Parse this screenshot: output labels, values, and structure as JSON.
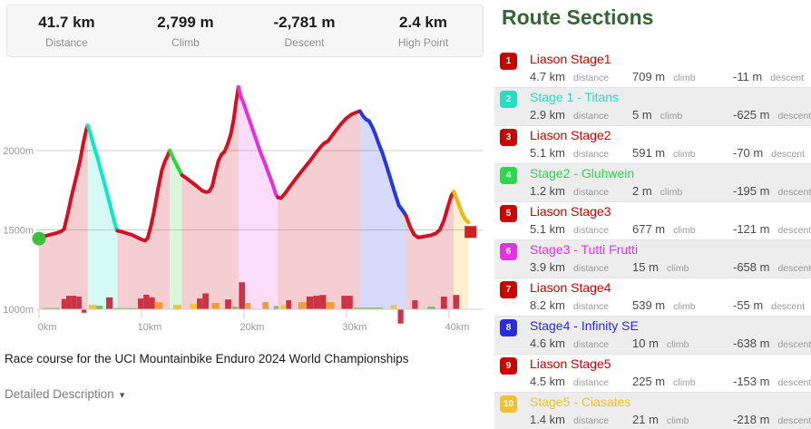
{
  "stats_bar": {
    "items": [
      {
        "value": "41.7 km",
        "label": "Distance"
      },
      {
        "value": "2,799 m",
        "label": "Climb"
      },
      {
        "value": "-2,781 m",
        "label": "Descent"
      },
      {
        "value": "2.4 km",
        "label": "High Point"
      }
    ]
  },
  "caption": "Race course for the UCI Mountainbike Enduro 2024 World Championships",
  "detail_toggle": {
    "label": "Detailed Description",
    "icon": "▾"
  },
  "route_sections": {
    "title": "Route Sections",
    "labels": {
      "distance": "distance",
      "climb": "climb",
      "descent": "descent"
    },
    "items": [
      {
        "num": "1",
        "name": "Liason Stage1",
        "color": "#cc0000",
        "distance": "4.7 km",
        "climb": "709 m",
        "descent": "-11 m"
      },
      {
        "num": "2",
        "name": "Stage 1 - Titans",
        "color": "#1fe0c4",
        "distance": "2.9 km",
        "climb": "5 m",
        "descent": "-625 m"
      },
      {
        "num": "3",
        "name": "Liason Stage2",
        "color": "#cc0000",
        "distance": "5.1 km",
        "climb": "591 m",
        "descent": "-70 m"
      },
      {
        "num": "4",
        "name": "Stage2 - Gluhwein",
        "color": "#2cd84e",
        "distance": "1.2 km",
        "climb": "2 m",
        "descent": "-195 m"
      },
      {
        "num": "5",
        "name": "Liason Stage3",
        "color": "#cc0000",
        "distance": "5.1 km",
        "climb": "677 m",
        "descent": "-121 m"
      },
      {
        "num": "6",
        "name": "Stage3 - Tutti Frutti",
        "color": "#e431e4",
        "distance": "3.9 km",
        "climb": "15 m",
        "descent": "-658 m"
      },
      {
        "num": "7",
        "name": "Liason Stage4",
        "color": "#cc0000",
        "distance": "8.2 km",
        "climb": "539 m",
        "descent": "-55 m"
      },
      {
        "num": "8",
        "name": "Stage4 - Infinity SE",
        "color": "#2a2ae4",
        "distance": "4.6 km",
        "climb": "10 m",
        "descent": "-638 m"
      },
      {
        "num": "9",
        "name": "Liason Stage5",
        "color": "#cc0000",
        "distance": "4.5 km",
        "climb": "225 m",
        "descent": "-153 m"
      },
      {
        "num": "10",
        "name": "Stage5 - Ciasates",
        "color": "#f2c12d",
        "distance": "1.4 km",
        "climb": "21 m",
        "descent": "-218 m"
      }
    ]
  },
  "chart_data": {
    "type": "area",
    "title": "Elevation profile of race course",
    "x_unit": "km",
    "y_unit": "m",
    "x_range": [
      0,
      43.5
    ],
    "y_range": [
      1000,
      2450
    ],
    "grid": true,
    "x_ticks": [
      {
        "v": 0,
        "label": "0km"
      },
      {
        "v": 10,
        "label": "10km"
      },
      {
        "v": 20,
        "label": "20km"
      },
      {
        "v": 30,
        "label": "30km"
      },
      {
        "v": 40,
        "label": "40km"
      }
    ],
    "y_ticks": [
      {
        "v": 1000,
        "label": "1000m"
      },
      {
        "v": 1500,
        "label": "1500m"
      },
      {
        "v": 2000,
        "label": "2000m"
      }
    ],
    "start_marker": {
      "x": 0,
      "elev": 1445,
      "color": "#3fbf3f"
    },
    "end_marker": {
      "x": 42.1,
      "elev": 1487,
      "color": "#cc2222"
    },
    "segments": [
      {
        "name": "Liason Stage1",
        "line": "#d11124",
        "fill": "rgba(209,30,50,0.22)",
        "points": [
          [
            0,
            1445
          ],
          [
            0.6,
            1462
          ],
          [
            1.2,
            1472
          ],
          [
            1.8,
            1482
          ],
          [
            2.2,
            1492
          ],
          [
            2.45,
            1505
          ],
          [
            2.8,
            1600
          ],
          [
            3.2,
            1720
          ],
          [
            3.6,
            1825
          ],
          [
            4.0,
            1935
          ],
          [
            4.3,
            2040
          ],
          [
            4.6,
            2130
          ],
          [
            4.75,
            2158
          ]
        ]
      },
      {
        "name": "Stage 1 - Titans",
        "line": "#0ee6c8",
        "fill": "rgba(14,230,200,0.18)",
        "points": [
          [
            4.75,
            2158
          ],
          [
            5.0,
            2110
          ],
          [
            5.3,
            2040
          ],
          [
            5.7,
            1955
          ],
          [
            6.1,
            1860
          ],
          [
            6.5,
            1765
          ],
          [
            6.9,
            1665
          ],
          [
            7.3,
            1565
          ],
          [
            7.55,
            1505
          ],
          [
            7.65,
            1495
          ]
        ]
      },
      {
        "name": "Liason Stage2",
        "line": "#d11124",
        "fill": "rgba(209,30,50,0.22)",
        "points": [
          [
            7.65,
            1495
          ],
          [
            8.1,
            1488
          ],
          [
            8.6,
            1478
          ],
          [
            9.1,
            1468
          ],
          [
            9.6,
            1452
          ],
          [
            10.0,
            1440
          ],
          [
            10.35,
            1432
          ],
          [
            10.6,
            1448
          ],
          [
            10.9,
            1520
          ],
          [
            11.2,
            1610
          ],
          [
            11.6,
            1755
          ],
          [
            12.0,
            1880
          ],
          [
            12.3,
            1935
          ],
          [
            12.55,
            1968
          ],
          [
            12.75,
            2000
          ]
        ]
      },
      {
        "name": "Stage2 - Gluhwein",
        "line": "#2cd440",
        "fill": "rgba(44,212,64,0.18)",
        "points": [
          [
            12.75,
            2000
          ],
          [
            13.0,
            1965
          ],
          [
            13.3,
            1925
          ],
          [
            13.6,
            1888
          ],
          [
            13.95,
            1845
          ]
        ]
      },
      {
        "name": "Liason Stage3",
        "line": "#d11124",
        "fill": "rgba(209,30,50,0.22)",
        "points": [
          [
            13.95,
            1845
          ],
          [
            14.4,
            1825
          ],
          [
            14.9,
            1800
          ],
          [
            15.4,
            1775
          ],
          [
            15.9,
            1748
          ],
          [
            16.3,
            1738
          ],
          [
            16.6,
            1742
          ],
          [
            16.9,
            1775
          ],
          [
            17.2,
            1860
          ],
          [
            17.5,
            1935
          ],
          [
            17.8,
            1975
          ],
          [
            18.1,
            1993
          ],
          [
            18.4,
            2040
          ],
          [
            18.7,
            2100
          ],
          [
            19.0,
            2200
          ],
          [
            19.2,
            2295
          ],
          [
            19.45,
            2400
          ]
        ]
      },
      {
        "name": "Stage3 - Tutti Frutti",
        "line": "#e42ee4",
        "fill": "rgba(228,46,228,0.16)",
        "points": [
          [
            19.45,
            2400
          ],
          [
            19.7,
            2340
          ],
          [
            20.0,
            2290
          ],
          [
            20.4,
            2215
          ],
          [
            20.8,
            2140
          ],
          [
            21.2,
            2065
          ],
          [
            21.6,
            1990
          ],
          [
            22.0,
            1925
          ],
          [
            22.4,
            1855
          ],
          [
            22.8,
            1785
          ],
          [
            23.1,
            1725
          ],
          [
            23.3,
            1705
          ]
        ]
      },
      {
        "name": "Liason Stage4",
        "line": "#d11124",
        "fill": "rgba(209,30,50,0.22)",
        "points": [
          [
            23.3,
            1705
          ],
          [
            23.6,
            1700
          ],
          [
            24.0,
            1730
          ],
          [
            24.5,
            1775
          ],
          [
            25.0,
            1818
          ],
          [
            25.5,
            1860
          ],
          [
            26.0,
            1900
          ],
          [
            26.5,
            1940
          ],
          [
            27.0,
            1985
          ],
          [
            27.5,
            2025
          ],
          [
            27.8,
            2045
          ],
          [
            28.2,
            2060
          ],
          [
            28.6,
            2095
          ],
          [
            29.0,
            2130
          ],
          [
            29.5,
            2170
          ],
          [
            30.0,
            2205
          ],
          [
            30.5,
            2228
          ],
          [
            31.0,
            2242
          ],
          [
            31.3,
            2248
          ]
        ]
      },
      {
        "name": "Stage4 - Infinity SE",
        "line": "#2636e6",
        "fill": "rgba(60,70,230,0.20)",
        "points": [
          [
            31.3,
            2248
          ],
          [
            31.6,
            2218
          ],
          [
            31.9,
            2196
          ],
          [
            32.2,
            2186
          ],
          [
            32.5,
            2150
          ],
          [
            32.8,
            2105
          ],
          [
            33.1,
            2050
          ],
          [
            33.5,
            1985
          ],
          [
            33.9,
            1905
          ],
          [
            34.3,
            1820
          ],
          [
            34.7,
            1735
          ],
          [
            35.1,
            1655
          ],
          [
            35.5,
            1620
          ],
          [
            35.8,
            1590
          ]
        ]
      },
      {
        "name": "Liason Stage5",
        "line": "#d11124",
        "fill": "rgba(209,30,50,0.22)",
        "points": [
          [
            35.8,
            1590
          ],
          [
            36.2,
            1520
          ],
          [
            36.6,
            1470
          ],
          [
            37.0,
            1452
          ],
          [
            37.5,
            1458
          ],
          [
            38.2,
            1466
          ],
          [
            38.7,
            1478
          ],
          [
            39.1,
            1500
          ],
          [
            39.5,
            1560
          ],
          [
            39.9,
            1648
          ],
          [
            40.2,
            1712
          ],
          [
            40.45,
            1740
          ]
        ]
      },
      {
        "name": "Stage5 - Ciasates",
        "line": "#f2b411",
        "fill": "rgba(242,180,17,0.20)",
        "points": [
          [
            40.45,
            1740
          ],
          [
            40.7,
            1705
          ],
          [
            41.0,
            1650
          ],
          [
            41.3,
            1600
          ],
          [
            41.6,
            1565
          ],
          [
            41.9,
            1548
          ]
        ]
      }
    ],
    "bar_palette": {
      "r": "#cc3344",
      "o": "#f39c35",
      "y": "#f2c437",
      "g": "#7cbb5f"
    },
    "bars": [
      [
        0.4,
        1.6,
        8,
        "g"
      ],
      [
        2.2,
        0.45,
        65,
        "r"
      ],
      [
        2.65,
        0.5,
        85,
        "r"
      ],
      [
        3.15,
        0.5,
        85,
        "r"
      ],
      [
        3.65,
        0.5,
        80,
        "r"
      ],
      [
        4.15,
        0.45,
        -22,
        "r"
      ],
      [
        4.85,
        0.75,
        28,
        "y"
      ],
      [
        5.6,
        0.6,
        22,
        "g"
      ],
      [
        6.55,
        0.65,
        75,
        "r"
      ],
      [
        7.3,
        2.3,
        8,
        "g"
      ],
      [
        9.65,
        0.55,
        68,
        "r"
      ],
      [
        10.2,
        0.55,
        92,
        "r"
      ],
      [
        10.75,
        0.55,
        75,
        "r"
      ],
      [
        11.3,
        0.75,
        45,
        "o"
      ],
      [
        13.1,
        0.8,
        28,
        "y"
      ],
      [
        14.7,
        0.7,
        34,
        "y"
      ],
      [
        15.4,
        0.55,
        68,
        "r"
      ],
      [
        15.95,
        0.6,
        100,
        "r"
      ],
      [
        16.85,
        0.75,
        40,
        "o"
      ],
      [
        18.15,
        0.6,
        62,
        "r"
      ],
      [
        18.85,
        0.55,
        16,
        "g"
      ],
      [
        19.5,
        0.6,
        170,
        "r"
      ],
      [
        20.15,
        0.5,
        40,
        "o"
      ],
      [
        21.8,
        0.6,
        45,
        "o"
      ],
      [
        22.9,
        0.45,
        20,
        "g"
      ],
      [
        23.6,
        0.5,
        28,
        "y"
      ],
      [
        24.1,
        0.5,
        57,
        "r"
      ],
      [
        25.3,
        0.8,
        45,
        "o"
      ],
      [
        26.1,
        0.65,
        80,
        "r"
      ],
      [
        26.75,
        0.6,
        85,
        "r"
      ],
      [
        27.35,
        0.65,
        90,
        "r"
      ],
      [
        28.0,
        0.8,
        45,
        "o"
      ],
      [
        29.5,
        0.55,
        85,
        "r"
      ],
      [
        30.05,
        0.55,
        85,
        "r"
      ],
      [
        30.7,
        2.8,
        10,
        "g"
      ],
      [
        34.3,
        0.6,
        28,
        "y"
      ],
      [
        35.0,
        0.55,
        -90,
        "r"
      ],
      [
        36.4,
        0.55,
        57,
        "r"
      ],
      [
        37.9,
        0.75,
        16,
        "g"
      ],
      [
        39.2,
        0.6,
        80,
        "r"
      ],
      [
        40.4,
        0.6,
        90,
        "r"
      ]
    ]
  }
}
